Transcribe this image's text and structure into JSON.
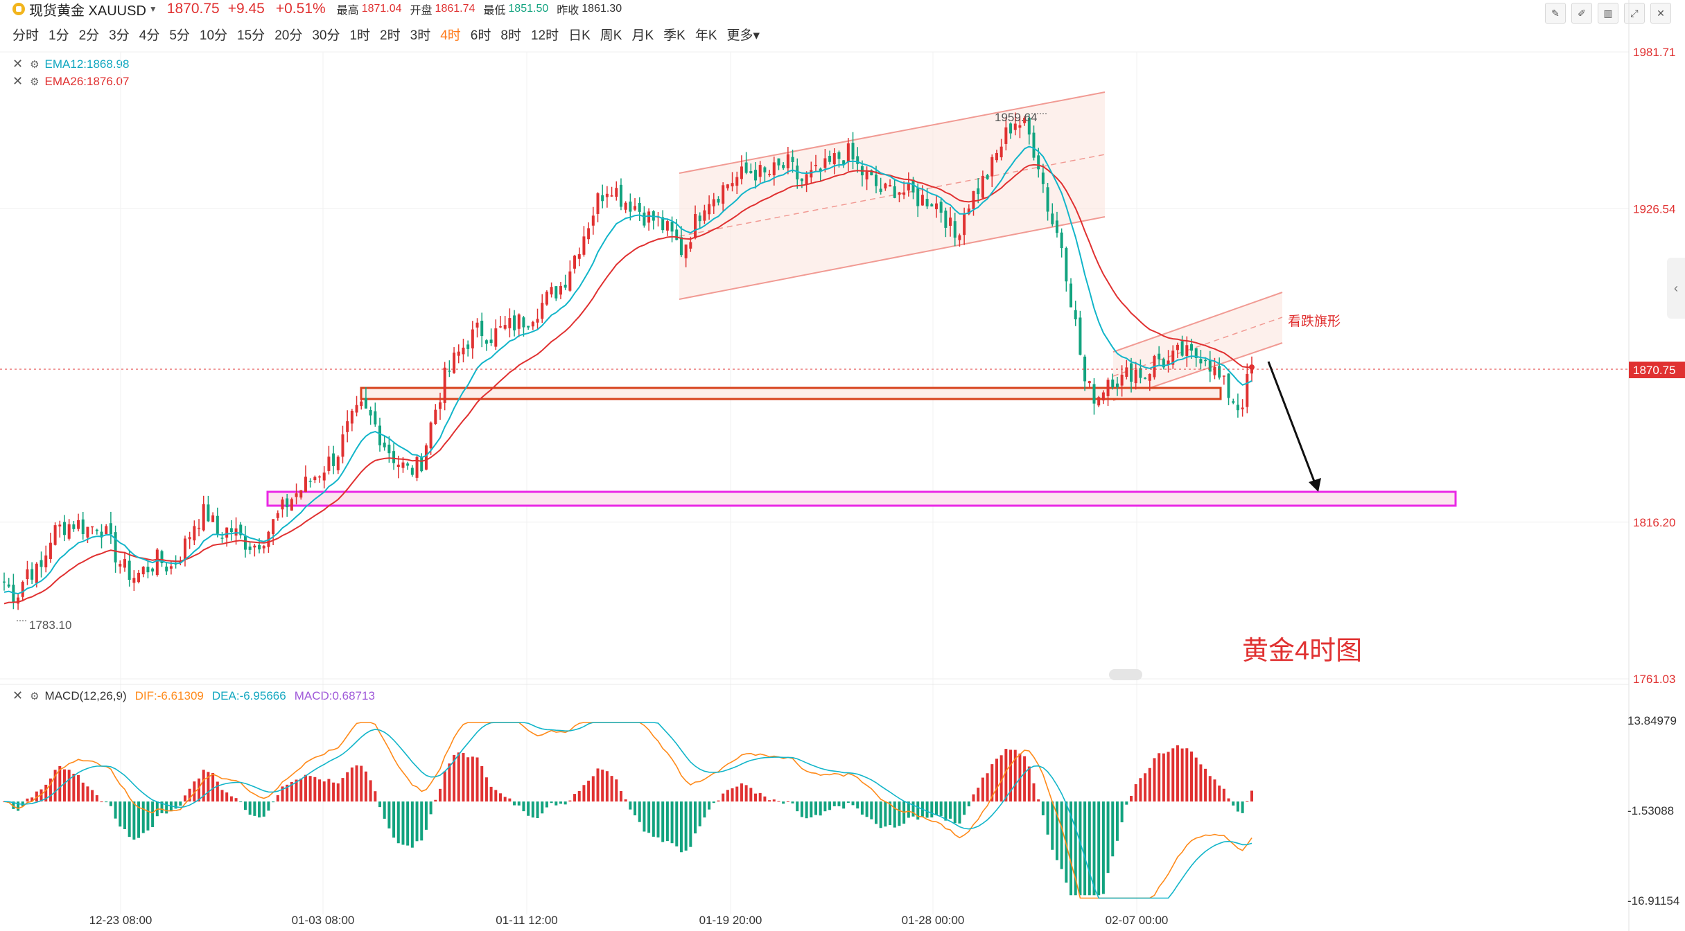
{
  "header": {
    "symbol": "现货黄金 XAUUSD",
    "price": "1870.75",
    "change": "+9.45",
    "change_pct": "+0.51%",
    "high_label": "最高",
    "high": "1871.04",
    "open_label": "开盘",
    "open": "1861.74",
    "low_label": "最低",
    "low": "1851.50",
    "prev_label": "昨收",
    "prev": "1861.30"
  },
  "periods": [
    "分时",
    "1分",
    "2分",
    "3分",
    "4分",
    "5分",
    "10分",
    "15分",
    "20分",
    "30分",
    "1时",
    "2时",
    "3时",
    "4时",
    "6时",
    "8时",
    "12时",
    "日K",
    "周K",
    "月K",
    "季K",
    "年K",
    "更多"
  ],
  "active_period": "4时",
  "indicators": {
    "ema12": "EMA12:1868.98",
    "ema26": "EMA26:1876.07",
    "macd_name": "MACD(12,26,9)",
    "dif": "DIF:-6.61309",
    "dea": "DEA:-6.95666",
    "macd": "MACD:0.68713"
  },
  "colors": {
    "up": "#e03131",
    "down": "#12a37f",
    "ema12": "#12b5c9",
    "ema26": "#e03131",
    "dif": "#ff8a1a",
    "dea": "#12b5c9",
    "macd_label": "#a05ad9",
    "flag": "#e03131"
  },
  "annotations": {
    "title": "黄金4时图",
    "pattern": "看跌旗形",
    "high_mark": "1959.64",
    "low_mark": "1783.10"
  },
  "chart_data": [
    {
      "type": "candlestick",
      "x": [
        "12-23 08:00",
        "01-03 08:00",
        "01-11 12:00",
        "01-19 20:00",
        "01-28 00:00",
        "02-07 00:00"
      ],
      "price_ticks": [
        "1981.71",
        "1926.54",
        "1870.75",
        "1816.20",
        "1761.03"
      ],
      "ylim": [
        1761.03,
        1981.71
      ],
      "last_price": 1870.75,
      "highest": 1959.64,
      "lowest": 1783.1,
      "close_path": [
        1795,
        1790,
        1800,
        1798,
        1812,
        1815,
        1816,
        1814,
        1816,
        1808,
        1800,
        1797,
        1800,
        1803,
        1800,
        1806,
        1816,
        1820,
        1812,
        1814,
        1810,
        1808,
        1812,
        1818,
        1824,
        1828,
        1832,
        1836,
        1840,
        1850,
        1856,
        1852,
        1844,
        1838,
        1834,
        1836,
        1852,
        1866,
        1874,
        1880,
        1884,
        1882,
        1884,
        1886,
        1888,
        1892,
        1896,
        1900,
        1910,
        1920,
        1930,
        1936,
        1930,
        1928,
        1924,
        1922,
        1918,
        1912,
        1920,
        1930,
        1932,
        1936,
        1938,
        1940,
        1938,
        1940,
        1942,
        1936,
        1938,
        1940,
        1944,
        1946,
        1940,
        1936,
        1932,
        1934,
        1932,
        1930,
        1930,
        1926,
        1916,
        1928,
        1934,
        1940,
        1950,
        1958,
        1955,
        1944,
        1924,
        1914,
        1890,
        1864,
        1860,
        1868,
        1866,
        1870,
        1868,
        1874,
        1872,
        1876,
        1874,
        1876,
        1868,
        1862,
        1856,
        1870.75
      ],
      "ema12": "1868.98",
      "ema26": "1876.07",
      "zones": [
        {
          "name": "support-1866",
          "from": 1866,
          "to": 1871
        },
        {
          "name": "target-1826",
          "from": 1826,
          "to": 1832
        }
      ],
      "channel": {
        "from_date": "01-19 20:00",
        "to_date": "02-02",
        "note": "rising channel"
      },
      "flag": {
        "label": "看跌旗形"
      }
    },
    {
      "type": "macd",
      "ticks": [
        "13.84979",
        "-1.53088",
        "-16.91154"
      ],
      "ylim": [
        -16.91154,
        13.84979
      ],
      "dif": -6.61309,
      "dea": -6.95666,
      "macd": 0.68713
    }
  ]
}
